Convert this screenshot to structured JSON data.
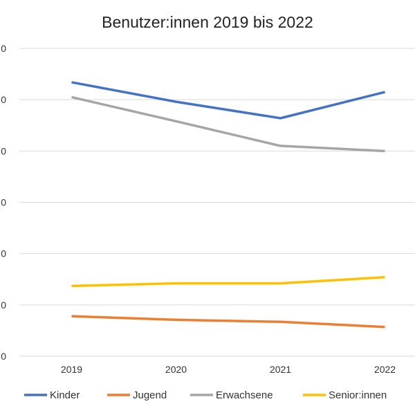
{
  "chart_data": {
    "type": "line",
    "title": "Benutzer:innen 2019 bis 2022",
    "categories": [
      "2019",
      "2020",
      "2021",
      "2022"
    ],
    "y_tick_labels": [
      "0",
      "0",
      "0",
      "0",
      "0",
      "0",
      "0"
    ],
    "ylim": [
      0,
      6
    ],
    "grid": true,
    "legend_position": "bottom",
    "series": [
      {
        "name": "Kinder",
        "color": "#4472C4",
        "values": [
          5.34,
          4.96,
          4.64,
          5.15
        ]
      },
      {
        "name": "Jugend",
        "color": "#ED7D31",
        "values": [
          0.78,
          0.71,
          0.67,
          0.57
        ]
      },
      {
        "name": "Erwachsene",
        "color": "#A5A5A5",
        "values": [
          5.05,
          4.58,
          4.1,
          4.0
        ]
      },
      {
        "name": "Senior:innen",
        "color": "#FFC000",
        "values": [
          1.37,
          1.42,
          1.42,
          1.54
        ]
      }
    ]
  }
}
